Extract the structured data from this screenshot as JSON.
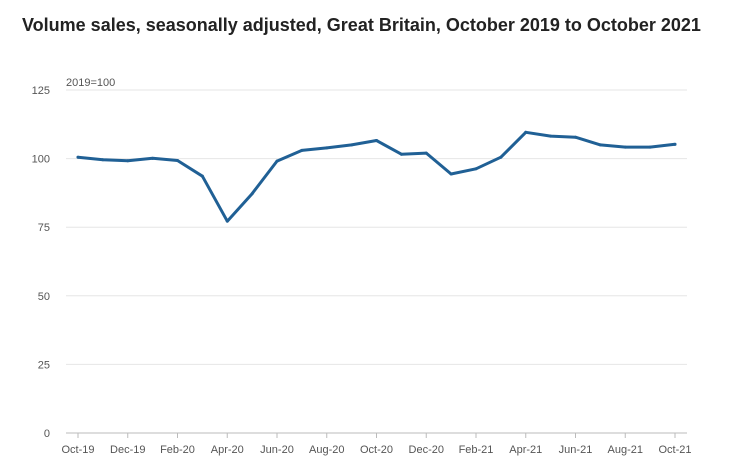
{
  "title": "Volume sales, seasonally adjusted, Great Britain, October 2019 to October 2021",
  "chart_data": {
    "type": "line",
    "title": "Volume sales, seasonally adjusted, Great Britain, October 2019 to October 2021",
    "unit_label": "2019=100",
    "xlabel": "",
    "ylabel": "",
    "ylim": [
      0,
      125
    ],
    "yticks": [
      0,
      25,
      50,
      75,
      100,
      125
    ],
    "grid": true,
    "line_color": "#206095",
    "x": [
      "Oct-19",
      "Nov-19",
      "Dec-19",
      "Jan-20",
      "Feb-20",
      "Mar-20",
      "Apr-20",
      "May-20",
      "Jun-20",
      "Jul-20",
      "Aug-20",
      "Sep-20",
      "Oct-20",
      "Nov-20",
      "Dec-20",
      "Jan-21",
      "Feb-21",
      "Mar-21",
      "Apr-21",
      "May-21",
      "Jun-21",
      "Jul-21",
      "Aug-21",
      "Sep-21",
      "Oct-21"
    ],
    "xtick_labels": [
      "Oct-19",
      "Dec-19",
      "Feb-20",
      "Apr-20",
      "Jun-20",
      "Aug-20",
      "Oct-20",
      "Dec-20",
      "Feb-21",
      "Apr-21",
      "Jun-21",
      "Aug-21",
      "Oct-21"
    ],
    "series": [
      {
        "values": [
          100.5,
          99.6,
          99.2,
          100.1,
          99.3,
          93.6,
          77.2,
          87.2,
          99.1,
          103.0,
          103.9,
          105.0,
          106.6,
          101.6,
          102.0,
          94.4,
          96.3,
          100.5,
          109.6,
          108.2,
          107.8,
          105.0,
          104.2,
          104.2,
          105.2
        ]
      }
    ]
  }
}
